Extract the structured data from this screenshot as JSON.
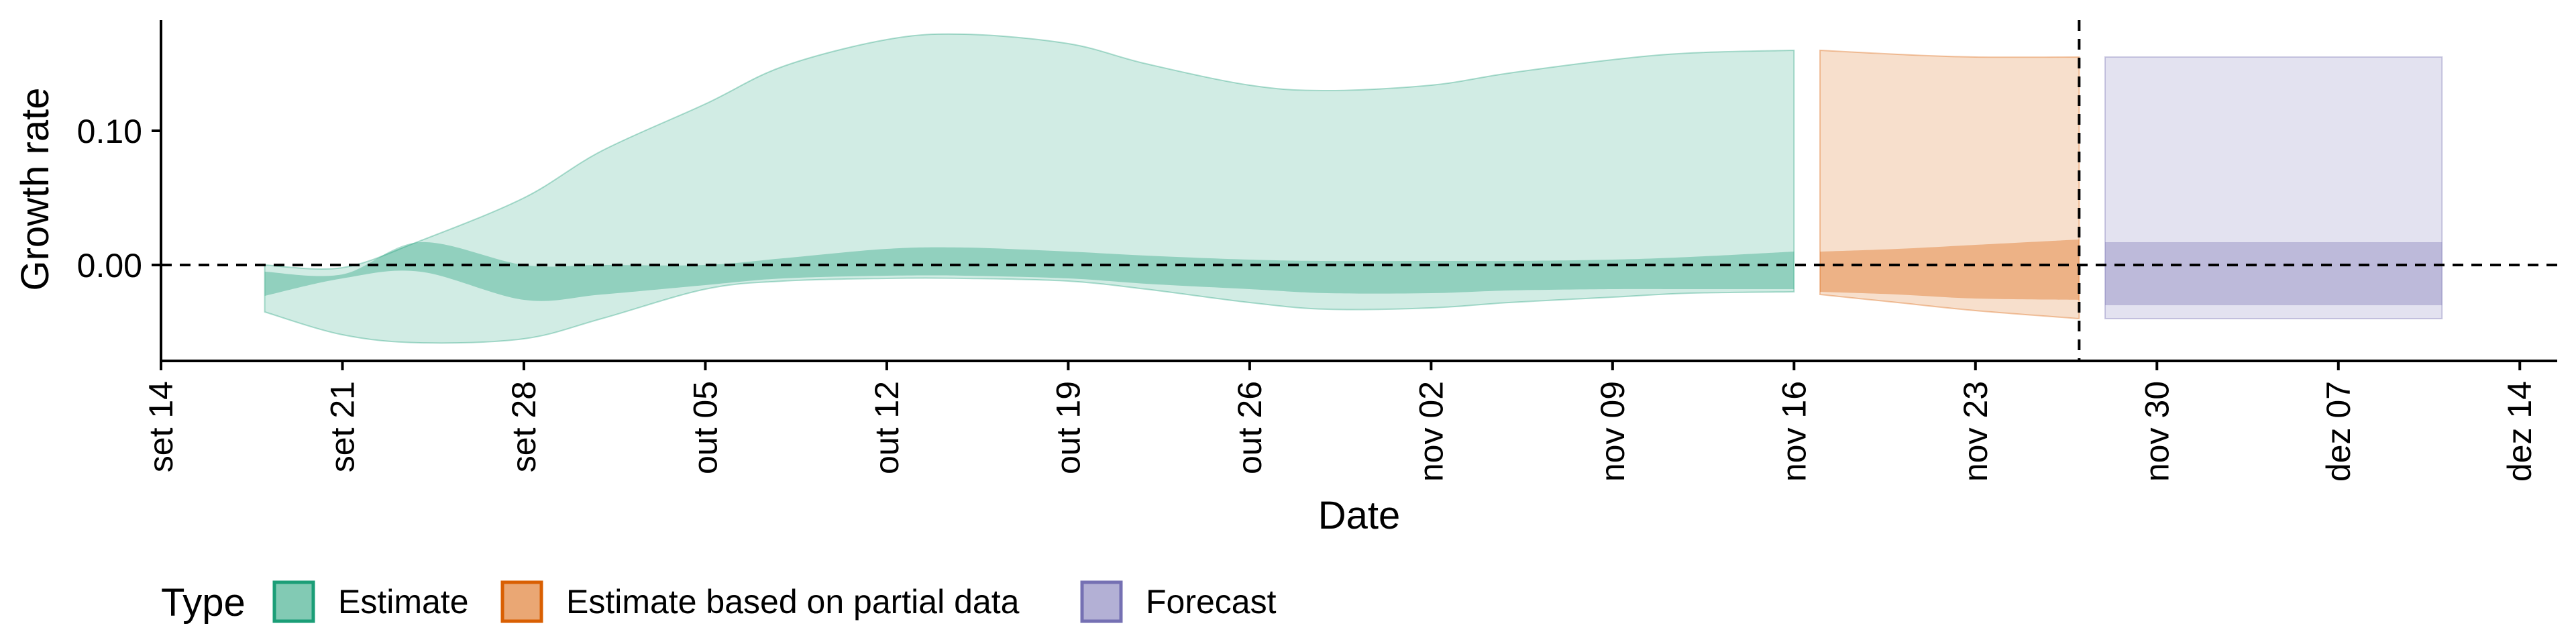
{
  "chart_data": {
    "type": "area",
    "xlabel": "Date",
    "ylabel": "Growth rate",
    "x_ticks": [
      "set 14",
      "set 21",
      "set 28",
      "out 05",
      "out 12",
      "out 19",
      "out 26",
      "nov 02",
      "nov 09",
      "nov 16",
      "nov 23",
      "nov 30",
      "dez 07",
      "dez 14"
    ],
    "y_ticks": [
      "0.00",
      "0.10"
    ],
    "ylim": [
      -0.07,
      0.18
    ],
    "reference_lines": {
      "horizontal_y": 0,
      "vertical_x": "nov 27"
    },
    "legend": {
      "title": "Type",
      "position": "bottom"
    },
    "series": [
      {
        "name": "Estimate",
        "color": "#1b9e77",
        "x": [
          "set 18",
          "set 21",
          "set 24",
          "set 28",
          "out 01",
          "out 05",
          "out 08",
          "out 12",
          "out 15",
          "out 19",
          "out 22",
          "out 26",
          "out 29",
          "nov 02",
          "nov 05",
          "nov 09",
          "nov 12",
          "nov 16"
        ],
        "upper_90": [
          0.0,
          -0.002,
          0.018,
          0.05,
          0.085,
          0.12,
          0.148,
          0.168,
          0.172,
          0.165,
          0.15,
          0.134,
          0.13,
          0.134,
          0.143,
          0.153,
          0.158,
          0.16
        ],
        "lower_90": [
          -0.035,
          -0.052,
          -0.058,
          -0.055,
          -0.04,
          -0.018,
          -0.012,
          -0.01,
          -0.01,
          -0.012,
          -0.018,
          -0.028,
          -0.033,
          -0.032,
          -0.028,
          -0.024,
          -0.021,
          -0.02
        ],
        "upper_50": [
          -0.005,
          -0.007,
          0.017,
          0.0,
          0.0,
          0.0,
          0.005,
          0.012,
          0.013,
          0.01,
          0.007,
          0.004,
          0.003,
          0.003,
          0.003,
          0.004,
          0.006,
          0.01
        ],
        "lower_50": [
          -0.023,
          -0.01,
          -0.005,
          -0.026,
          -0.022,
          -0.015,
          -0.01,
          -0.008,
          -0.008,
          -0.01,
          -0.014,
          -0.018,
          -0.021,
          -0.021,
          -0.019,
          -0.018,
          -0.018,
          -0.018
        ]
      },
      {
        "name": "Estimate based on partial data",
        "color": "#d95f02",
        "x": [
          "nov 17",
          "nov 20",
          "nov 23",
          "nov 27"
        ],
        "upper_90": [
          0.16,
          0.157,
          0.155,
          0.155
        ],
        "lower_90": [
          -0.022,
          -0.028,
          -0.034,
          -0.04
        ],
        "upper_50": [
          0.01,
          0.012,
          0.015,
          0.019
        ],
        "lower_50": [
          -0.02,
          -0.022,
          -0.025,
          -0.026
        ]
      },
      {
        "name": "Forecast",
        "color": "#7570b3",
        "x": [
          "nov 28",
          "dez 11"
        ],
        "upper_90": [
          0.155,
          0.155
        ],
        "lower_90": [
          -0.04,
          -0.04
        ],
        "upper_50": [
          0.017,
          0.017
        ],
        "lower_50": [
          -0.03,
          -0.03
        ]
      }
    ]
  }
}
